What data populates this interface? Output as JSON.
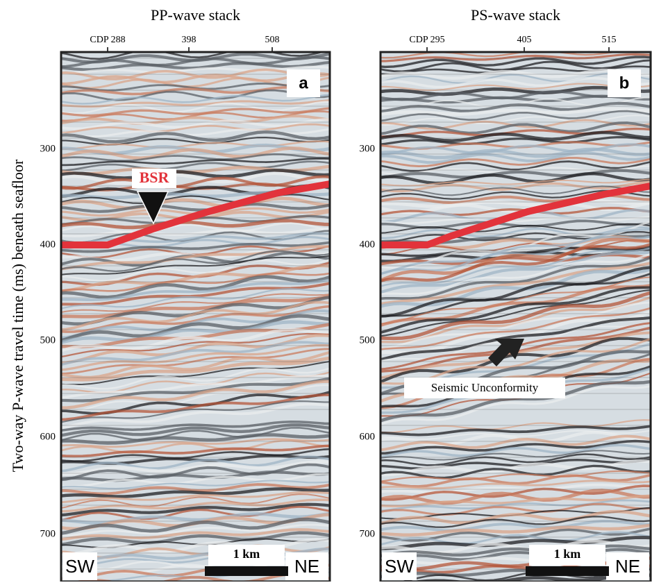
{
  "figure": {
    "y_axis_label": "Two-way P-wave travel time (ms) beneath seafloor",
    "y_ticks": [
      300,
      400,
      500,
      600,
      700
    ],
    "panels": [
      {
        "title": "PP-wave stack",
        "x_ticks": [
          "CDP 288",
          "398",
          "508"
        ],
        "label": "a",
        "left": "SW",
        "right": "NE",
        "scale": "1 km",
        "annotation": "BSR"
      },
      {
        "title": "PS-wave stack",
        "x_ticks": [
          "CDP 295",
          "405",
          "515"
        ],
        "label": "b",
        "left": "SW",
        "right": "NE",
        "scale": "1 km",
        "annotation": "Seismic Unconformity"
      }
    ]
  }
}
